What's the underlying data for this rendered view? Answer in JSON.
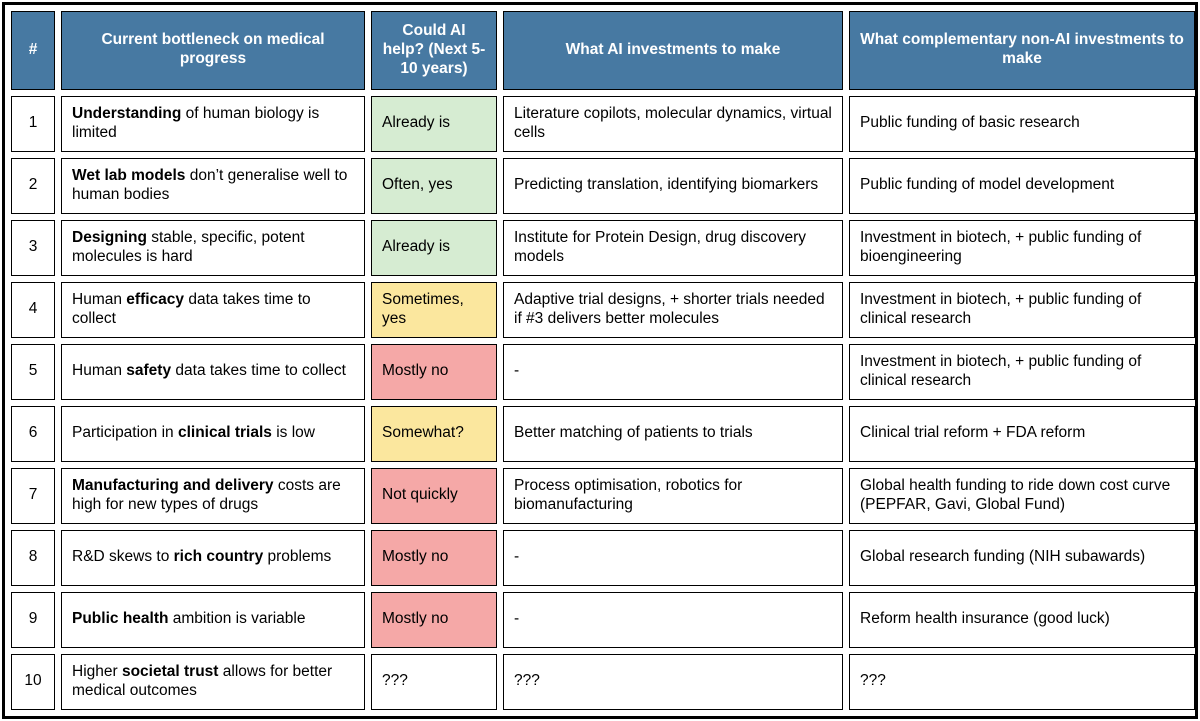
{
  "colors": {
    "header_bg": "#4779a2",
    "green": "#d6ecd2",
    "yellow": "#fbe79e",
    "red": "#f5a8a7",
    "border": "#000000"
  },
  "chart_data": {
    "type": "table",
    "columns": [
      {
        "key": "num",
        "label": "#"
      },
      {
        "key": "bottleneck",
        "label": "Current bottleneck on medical progress"
      },
      {
        "key": "ai_help",
        "label": "Could AI help? (Next 5-10 years)"
      },
      {
        "key": "ai_invest",
        "label": "What AI investments to make"
      },
      {
        "key": "non_ai",
        "label": "What complementary non-AI investments to make"
      }
    ],
    "rows": [
      {
        "num": "1",
        "bottleneck": [
          {
            "text": "Understanding",
            "bold": true
          },
          {
            "text": " of human biology is limited",
            "bold": false
          }
        ],
        "ai_help": "Already is",
        "ai_help_status": "green",
        "ai_invest": "Literature copilots, molecular dynamics, virtual cells",
        "non_ai": "Public funding of basic research"
      },
      {
        "num": "2",
        "bottleneck": [
          {
            "text": "Wet lab models",
            "bold": true
          },
          {
            "text": " don’t generalise well to human bodies",
            "bold": false
          }
        ],
        "ai_help": "Often, yes",
        "ai_help_status": "green",
        "ai_invest": "Predicting translation, identifying biomarkers",
        "non_ai": "Public funding of model development"
      },
      {
        "num": "3",
        "bottleneck": [
          {
            "text": "Designing",
            "bold": true
          },
          {
            "text": " stable, specific, potent molecules is hard",
            "bold": false
          }
        ],
        "ai_help": "Already is",
        "ai_help_status": "green",
        "ai_invest": "Institute for Protein Design, drug discovery models",
        "non_ai": "Investment in biotech, + public funding of bioengineering"
      },
      {
        "num": "4",
        "bottleneck": [
          {
            "text": "Human ",
            "bold": false
          },
          {
            "text": "efficacy",
            "bold": true
          },
          {
            "text": " data takes time to collect",
            "bold": false
          }
        ],
        "ai_help": "Sometimes, yes",
        "ai_help_status": "yellow",
        "ai_invest": "Adaptive trial designs, + shorter trials needed if #3 delivers better molecules",
        "non_ai": "Investment in biotech, + public funding of clinical research"
      },
      {
        "num": "5",
        "bottleneck": [
          {
            "text": "Human ",
            "bold": false
          },
          {
            "text": "safety",
            "bold": true
          },
          {
            "text": " data takes time to collect",
            "bold": false
          }
        ],
        "ai_help": "Mostly no",
        "ai_help_status": "red",
        "ai_invest": "-",
        "non_ai": "Investment in biotech, + public funding of clinical research"
      },
      {
        "num": "6",
        "bottleneck": [
          {
            "text": "Participation in ",
            "bold": false
          },
          {
            "text": "clinical trials",
            "bold": true
          },
          {
            "text": " is low",
            "bold": false
          }
        ],
        "ai_help": "Somewhat?",
        "ai_help_status": "yellow",
        "ai_invest": "Better matching of patients to trials",
        "non_ai": "Clinical trial reform + FDA reform"
      },
      {
        "num": "7",
        "bottleneck": [
          {
            "text": "Manufacturing and delivery",
            "bold": true
          },
          {
            "text": " costs are high for new types of drugs",
            "bold": false
          }
        ],
        "ai_help": "Not quickly",
        "ai_help_status": "red",
        "ai_invest": "Process optimisation, robotics for biomanufacturing",
        "non_ai": "Global health funding to ride down cost curve (PEPFAR, Gavi, Global Fund)"
      },
      {
        "num": "8",
        "bottleneck": [
          {
            "text": "R&D skews to ",
            "bold": false
          },
          {
            "text": "rich country",
            "bold": true
          },
          {
            "text": " problems",
            "bold": false
          }
        ],
        "ai_help": "Mostly no",
        "ai_help_status": "red",
        "ai_invest": "-",
        "non_ai": "Global research funding (NIH subawards)"
      },
      {
        "num": "9",
        "bottleneck": [
          {
            "text": "Public health",
            "bold": true
          },
          {
            "text": " ambition is variable",
            "bold": false
          }
        ],
        "ai_help": "Mostly no",
        "ai_help_status": "red",
        "ai_invest": "-",
        "non_ai": "Reform health insurance (good luck)"
      },
      {
        "num": "10",
        "bottleneck": [
          {
            "text": "Higher ",
            "bold": false
          },
          {
            "text": "societal trust",
            "bold": true
          },
          {
            "text": " allows for better medical outcomes",
            "bold": false
          }
        ],
        "ai_help": "???",
        "ai_help_status": "none",
        "ai_invest": "???",
        "non_ai": "???"
      }
    ]
  }
}
